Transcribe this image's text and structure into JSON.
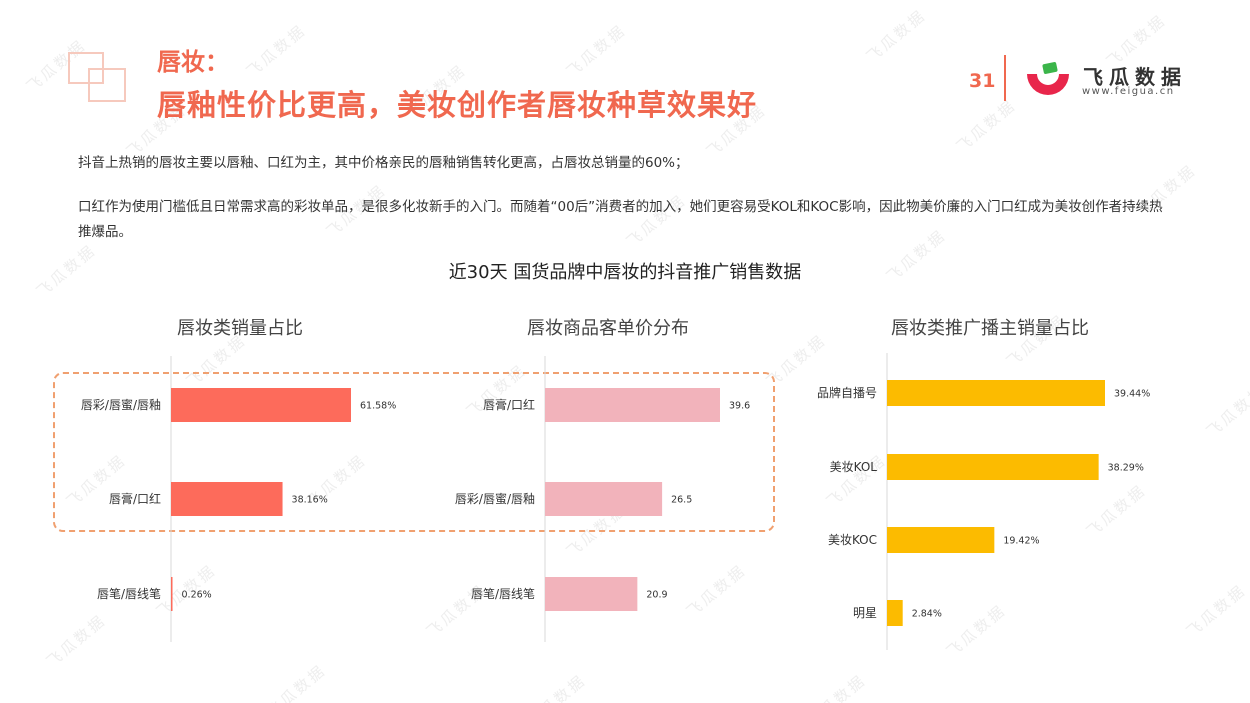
{
  "header": {
    "title_small": "唇妆：",
    "title_main": "唇釉性价比更高，美妆创作者唇妆种草效果好",
    "page_number": "31",
    "logo_name": "飞瓜数据",
    "logo_url": "www.feigua.cn"
  },
  "watermark": "飞瓜数据",
  "paragraphs": [
    "抖音上热销的唇妆主要以唇釉、口红为主，其中价格亲民的唇釉销售转化更高，占唇妆总销量的60%；",
    "口红作为使用门槛低且日常需求高的彩妆单品，是很多化妆新手的入门。而随着“00后”消费者的加入，她们更容易受KOL和KOC影响，因此物美价廉的入门口红成为美妆创作者持续热推爆品。"
  ],
  "main_chart_title": "近30天 国货品牌中唇妆的抖音推广销售数据",
  "colors": {
    "accent": "#f0684f",
    "bar1": "#fd6b5b",
    "bar2": "#f2b3bb",
    "bar3": "#fcbb00"
  },
  "chart_data": [
    {
      "type": "bar",
      "orientation": "horizontal",
      "title": "唇妆类销量占比",
      "categories": [
        "唇彩/唇蜜/唇釉",
        "唇膏/口红",
        "唇笔/唇线笔"
      ],
      "values": [
        61.58,
        38.16,
        0.26
      ],
      "value_labels": [
        "61.58%",
        "38.16%",
        "0.26%"
      ],
      "unit": "%"
    },
    {
      "type": "bar",
      "orientation": "horizontal",
      "title": "唇妆商品客单价分布",
      "categories": [
        "唇膏/口红",
        "唇彩/唇蜜/唇釉",
        "唇笔/唇线笔"
      ],
      "values": [
        39.6,
        26.5,
        20.9
      ],
      "value_labels": [
        "39.6",
        "26.5",
        "20.9"
      ]
    },
    {
      "type": "bar",
      "orientation": "horizontal",
      "title": "唇妆类推广播主销量占比",
      "categories": [
        "品牌自播号",
        "美妆KOL",
        "美妆KOC",
        "明星"
      ],
      "values": [
        39.44,
        38.29,
        19.42,
        2.84
      ],
      "value_labels": [
        "39.44%",
        "38.29%",
        "19.42%",
        "2.84%"
      ],
      "unit": "%"
    }
  ]
}
